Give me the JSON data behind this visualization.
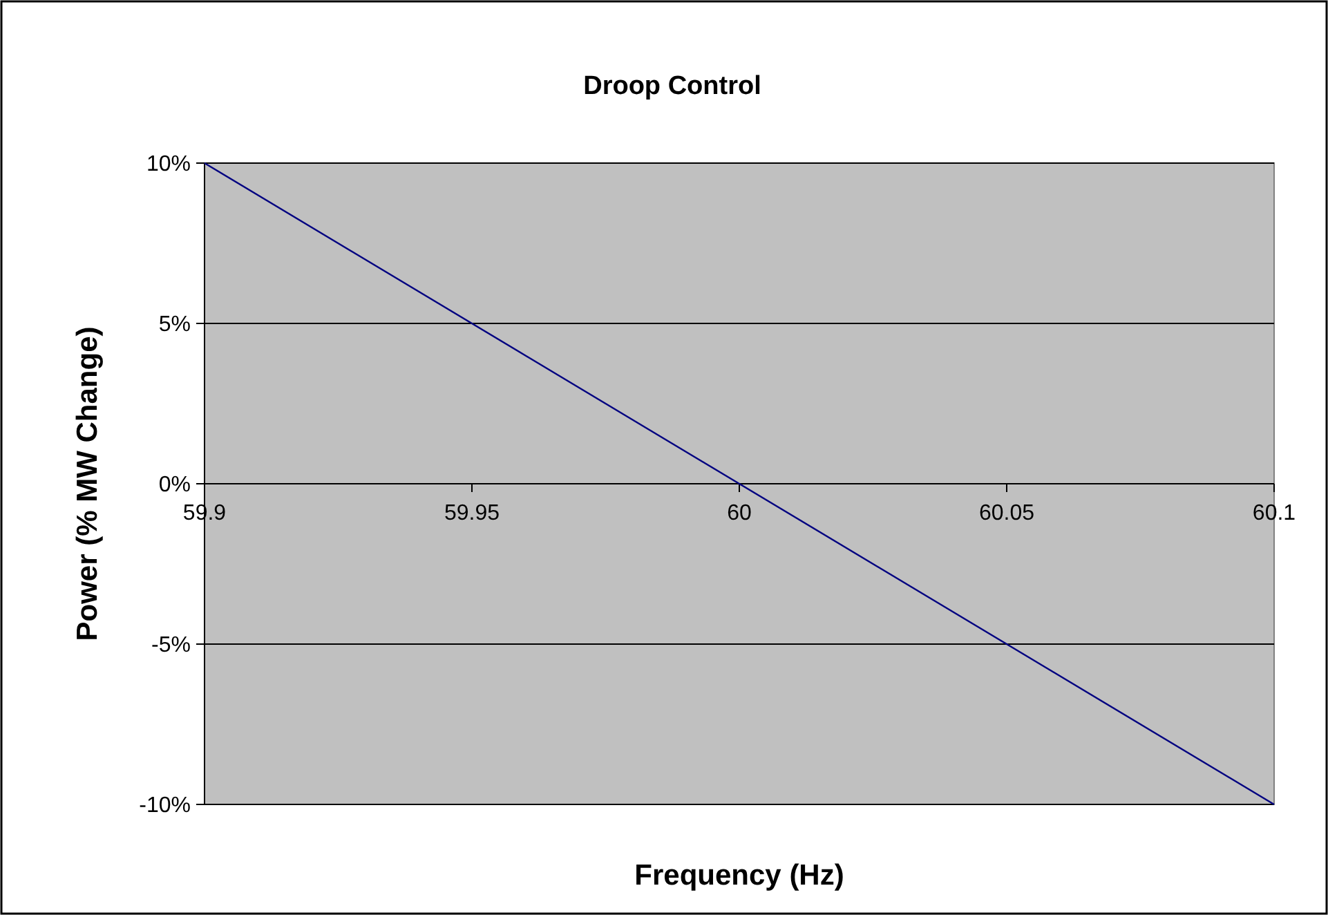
{
  "chart_data": {
    "type": "line",
    "title": "Droop Control",
    "xlabel": "Frequency (Hz)",
    "ylabel": "Power (% MW Change)",
    "x": [
      59.9,
      60.1
    ],
    "series": [
      {
        "color": "#000080",
        "values": [
          10,
          -10
        ]
      }
    ],
    "xlim": [
      59.9,
      60.1
    ],
    "xticks": [
      59.9,
      59.95,
      60,
      60.05,
      60.1
    ],
    "ylim": [
      -10,
      10
    ],
    "yticks": [
      {
        "value": -10,
        "label": "-10%"
      },
      {
        "value": -5,
        "label": "-5%"
      },
      {
        "value": 0,
        "label": "0%"
      },
      {
        "value": 5,
        "label": "5%"
      },
      {
        "value": 10,
        "label": "10%"
      }
    ],
    "grid": "y",
    "marker": "none",
    "line_style": "solid"
  }
}
